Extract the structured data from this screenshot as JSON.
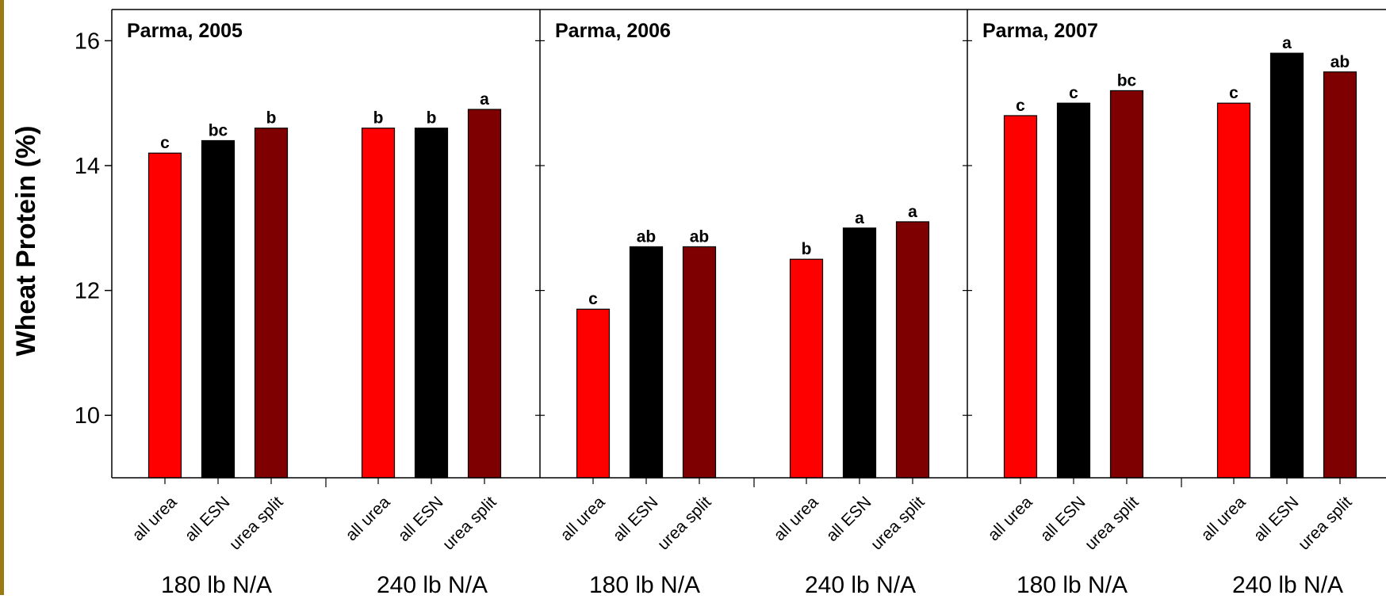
{
  "chart_data": {
    "type": "bar",
    "ylabel": "Wheat Protein (%)",
    "ylim": [
      9,
      16.5
    ],
    "yticks": [
      10,
      12,
      14,
      16
    ],
    "ytick_labels": [
      "10",
      "12",
      "14",
      "16"
    ],
    "treatments": [
      "all urea",
      "all ESN",
      "urea split"
    ],
    "groups": [
      "180 lb N/A",
      "240 lb N/A"
    ],
    "colors": [
      "#ff0000",
      "#000000",
      "#7f0000"
    ],
    "grid": false,
    "panels": [
      {
        "title": "Parma, 2005",
        "values": [
          [
            14.2,
            14.4,
            14.6
          ],
          [
            14.6,
            14.6,
            14.9
          ]
        ],
        "labels": [
          [
            "c",
            "bc",
            "b"
          ],
          [
            "b",
            "b",
            "a"
          ]
        ]
      },
      {
        "title": "Parma, 2006",
        "values": [
          [
            11.7,
            12.7,
            12.7
          ],
          [
            12.5,
            13.0,
            13.1
          ]
        ],
        "labels": [
          [
            "c",
            "ab",
            "ab"
          ],
          [
            "b",
            "a",
            "a"
          ]
        ]
      },
      {
        "title": "Parma, 2007",
        "values": [
          [
            14.8,
            15.0,
            15.2
          ],
          [
            15.0,
            15.8,
            15.5
          ]
        ],
        "labels": [
          [
            "c",
            "c",
            "bc"
          ],
          [
            "c",
            "a",
            "ab"
          ]
        ]
      }
    ]
  }
}
